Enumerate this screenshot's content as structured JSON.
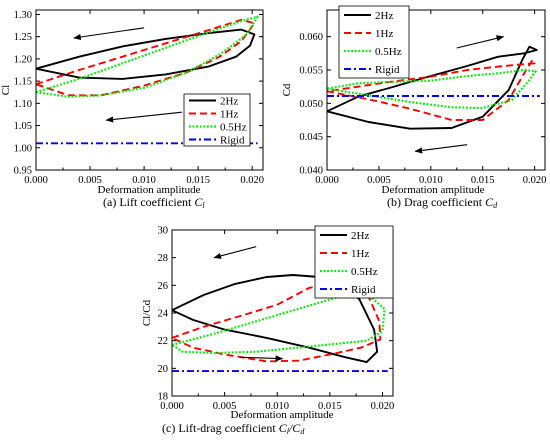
{
  "chart_data": [
    {
      "type": "line",
      "xlabel": "Deformation amplitude",
      "ylabel": "Cl",
      "xlim": [
        0.0,
        0.021
      ],
      "ylim": [
        0.95,
        1.31
      ],
      "xticks": [
        "0.000",
        "0.005",
        "0.010",
        "0.015",
        "0.020"
      ],
      "yticks": [
        "0.95",
        "1.00",
        "1.05",
        "1.10",
        "1.15",
        "1.20",
        "1.25",
        "1.30"
      ],
      "legend_position": "lower-right",
      "caption": {
        "prefix": "(a) Lift coefficient ",
        "symbol": "C",
        "sub": "l"
      },
      "series": [
        {
          "name": "2Hz",
          "color": "#000000",
          "style": "solid",
          "points": [
            [
              0.0,
              1.178
            ],
            [
              0.004,
              1.205
            ],
            [
              0.008,
              1.228
            ],
            [
              0.012,
              1.245
            ],
            [
              0.016,
              1.258
            ],
            [
              0.019,
              1.266
            ],
            [
              0.0202,
              1.255
            ],
            [
              0.0198,
              1.23
            ],
            [
              0.0185,
              1.205
            ],
            [
              0.016,
              1.183
            ],
            [
              0.012,
              1.165
            ],
            [
              0.008,
              1.155
            ],
            [
              0.004,
              1.158
            ],
            [
              0.0,
              1.178
            ]
          ]
        },
        {
          "name": "1Hz",
          "color": "#ff0000",
          "style": "dashed",
          "points": [
            [
              0.0,
              1.143
            ],
            [
              0.004,
              1.175
            ],
            [
              0.008,
              1.205
            ],
            [
              0.012,
              1.235
            ],
            [
              0.016,
              1.265
            ],
            [
              0.019,
              1.288
            ],
            [
              0.0202,
              1.28
            ],
            [
              0.019,
              1.24
            ],
            [
              0.017,
              1.205
            ],
            [
              0.014,
              1.17
            ],
            [
              0.01,
              1.14
            ],
            [
              0.006,
              1.118
            ],
            [
              0.003,
              1.118
            ],
            [
              0.0,
              1.143
            ]
          ]
        },
        {
          "name": "0.5Hz",
          "color": "#00ee00",
          "style": "dotted",
          "points": [
            [
              0.0,
              1.125
            ],
            [
              0.004,
              1.155
            ],
            [
              0.008,
              1.19
            ],
            [
              0.012,
              1.225
            ],
            [
              0.016,
              1.26
            ],
            [
              0.019,
              1.285
            ],
            [
              0.0205,
              1.295
            ],
            [
              0.0195,
              1.255
            ],
            [
              0.017,
              1.21
            ],
            [
              0.014,
              1.17
            ],
            [
              0.01,
              1.135
            ],
            [
              0.006,
              1.118
            ],
            [
              0.003,
              1.115
            ],
            [
              0.0,
              1.125
            ]
          ]
        },
        {
          "name": "Rigid",
          "color": "#0000ff",
          "style": "dashdot",
          "points": [
            [
              0.0,
              1.01
            ],
            [
              0.0205,
              1.01
            ]
          ]
        }
      ],
      "arrows": [
        {
          "from": [
            0.01,
            1.27
          ],
          "to": [
            0.0035,
            1.247
          ]
        },
        {
          "from": [
            0.0135,
            1.08
          ],
          "to": [
            0.0065,
            1.062
          ]
        }
      ]
    },
    {
      "type": "line",
      "xlabel": "Deformation amplitude",
      "ylabel": "Cd",
      "xlim": [
        0.0,
        0.021
      ],
      "ylim": [
        0.04,
        0.064
      ],
      "xticks": [
        "0.000",
        "0.005",
        "0.010",
        "0.015",
        "0.020"
      ],
      "yticks": [
        "0.040",
        "0.045",
        "0.050",
        "0.055",
        "0.060"
      ],
      "legend_position": "top-left",
      "caption": {
        "prefix": "(b) Drag coefficient ",
        "symbol": "C",
        "sub": "d"
      },
      "series": [
        {
          "name": "2Hz",
          "color": "#000000",
          "style": "solid",
          "points": [
            [
              0.0,
              0.0488
            ],
            [
              0.004,
              0.0472
            ],
            [
              0.008,
              0.0462
            ],
            [
              0.012,
              0.0463
            ],
            [
              0.015,
              0.048
            ],
            [
              0.0175,
              0.052
            ],
            [
              0.0188,
              0.0565
            ],
            [
              0.0195,
              0.0585
            ],
            [
              0.0202,
              0.058
            ],
            [
              0.019,
              0.0575
            ],
            [
              0.0165,
              0.057
            ],
            [
              0.0135,
              0.0556
            ],
            [
              0.01,
              0.0541
            ],
            [
              0.006,
              0.0523
            ],
            [
              0.003,
              0.051
            ],
            [
              0.0,
              0.0488
            ]
          ]
        },
        {
          "name": "1Hz",
          "color": "#ff0000",
          "style": "dashed",
          "points": [
            [
              0.0,
              0.0518
            ],
            [
              0.004,
              0.0506
            ],
            [
              0.008,
              0.0492
            ],
            [
              0.012,
              0.0475
            ],
            [
              0.015,
              0.0475
            ],
            [
              0.0175,
              0.0505
            ],
            [
              0.019,
              0.0545
            ],
            [
              0.0198,
              0.0565
            ],
            [
              0.02,
              0.056
            ],
            [
              0.017,
              0.0556
            ],
            [
              0.0135,
              0.055
            ],
            [
              0.01,
              0.054
            ],
            [
              0.006,
              0.0532
            ],
            [
              0.003,
              0.0525
            ],
            [
              0.0,
              0.0518
            ]
          ]
        },
        {
          "name": "0.5Hz",
          "color": "#00ee00",
          "style": "dotted",
          "points": [
            [
              0.0,
              0.0522
            ],
            [
              0.004,
              0.0512
            ],
            [
              0.008,
              0.0502
            ],
            [
              0.012,
              0.0494
            ],
            [
              0.015,
              0.0493
            ],
            [
              0.0178,
              0.0505
            ],
            [
              0.0195,
              0.0535
            ],
            [
              0.0201,
              0.0548
            ],
            [
              0.019,
              0.055
            ],
            [
              0.0165,
              0.0545
            ],
            [
              0.0135,
              0.0541
            ],
            [
              0.01,
              0.0534
            ],
            [
              0.006,
              0.0532
            ],
            [
              0.003,
              0.053
            ],
            [
              0.0,
              0.0522
            ]
          ]
        },
        {
          "name": "Rigid",
          "color": "#0000ff",
          "style": "dashdot",
          "points": [
            [
              0.0,
              0.0511
            ],
            [
              0.0205,
              0.0511
            ]
          ]
        }
      ],
      "arrows": [
        {
          "from": [
            0.0125,
            0.0583
          ],
          "to": [
            0.017,
            0.06
          ]
        },
        {
          "from": [
            0.0135,
            0.0438
          ],
          "to": [
            0.0085,
            0.0428
          ]
        }
      ]
    },
    {
      "type": "line",
      "xlabel": "Deformation amplitude",
      "ylabel": "Cl/Cd",
      "xlim": [
        0.0,
        0.021
      ],
      "ylim": [
        18,
        30
      ],
      "xticks": [
        "0.000",
        "0.005",
        "0.010",
        "0.015",
        "0.020"
      ],
      "yticks": [
        "18",
        "20",
        "22",
        "24",
        "26",
        "28",
        "30"
      ],
      "legend_position": "top-right",
      "caption": {
        "prefix": "(c) Lift-drag coefficient ",
        "symbol": "C",
        "sub": "l",
        "symbol2": "/C",
        "sub2": "d"
      },
      "series": [
        {
          "name": "2Hz",
          "color": "#000000",
          "style": "solid",
          "points": [
            [
              0.0,
              24.2
            ],
            [
              0.003,
              25.3
            ],
            [
              0.006,
              26.1
            ],
            [
              0.009,
              26.6
            ],
            [
              0.0115,
              26.75
            ],
            [
              0.014,
              26.6
            ],
            [
              0.016,
              26.1
            ],
            [
              0.0178,
              25.0
            ],
            [
              0.0192,
              22.8
            ],
            [
              0.0195,
              21.2
            ],
            [
              0.0185,
              20.45
            ],
            [
              0.0165,
              20.8
            ],
            [
              0.013,
              21.5
            ],
            [
              0.009,
              22.2
            ],
            [
              0.005,
              22.8
            ],
            [
              0.002,
              23.5
            ],
            [
              0.0,
              24.2
            ]
          ]
        },
        {
          "name": "1Hz",
          "color": "#ff0000",
          "style": "dashed",
          "points": [
            [
              0.0,
              22.2
            ],
            [
              0.003,
              23.0
            ],
            [
              0.007,
              23.9
            ],
            [
              0.01,
              24.6
            ],
            [
              0.013,
              25.8
            ],
            [
              0.016,
              26.3
            ],
            [
              0.0185,
              25.5
            ],
            [
              0.0197,
              23.4
            ],
            [
              0.0198,
              22.1
            ],
            [
              0.018,
              21.5
            ],
            [
              0.015,
              21.0
            ],
            [
              0.012,
              20.55
            ],
            [
              0.009,
              20.5
            ],
            [
              0.005,
              21.0
            ],
            [
              0.002,
              21.5
            ],
            [
              0.0,
              22.2
            ]
          ]
        },
        {
          "name": "0.5Hz",
          "color": "#00ee00",
          "style": "dotted",
          "points": [
            [
              0.0,
              21.7
            ],
            [
              0.004,
              22.5
            ],
            [
              0.008,
              23.4
            ],
            [
              0.012,
              24.3
            ],
            [
              0.016,
              25.2
            ],
            [
              0.0185,
              25.4
            ],
            [
              0.0202,
              24.3
            ],
            [
              0.02,
              22.7
            ],
            [
              0.0185,
              22.0
            ],
            [
              0.016,
              21.8
            ],
            [
              0.012,
              21.5
            ],
            [
              0.008,
              21.2
            ],
            [
              0.004,
              21.1
            ],
            [
              0.001,
              21.2
            ],
            [
              0.0,
              21.7
            ]
          ]
        },
        {
          "name": "Rigid",
          "color": "#0000ff",
          "style": "dashdot",
          "points": [
            [
              0.0,
              19.8
            ],
            [
              0.0205,
              19.8
            ]
          ]
        }
      ],
      "arrows": [
        {
          "from": [
            0.008,
            28.8
          ],
          "to": [
            0.004,
            28.0
          ]
        },
        {
          "from": [
            0.0065,
            20.8
          ],
          "to": [
            0.0105,
            20.7
          ]
        }
      ]
    }
  ]
}
